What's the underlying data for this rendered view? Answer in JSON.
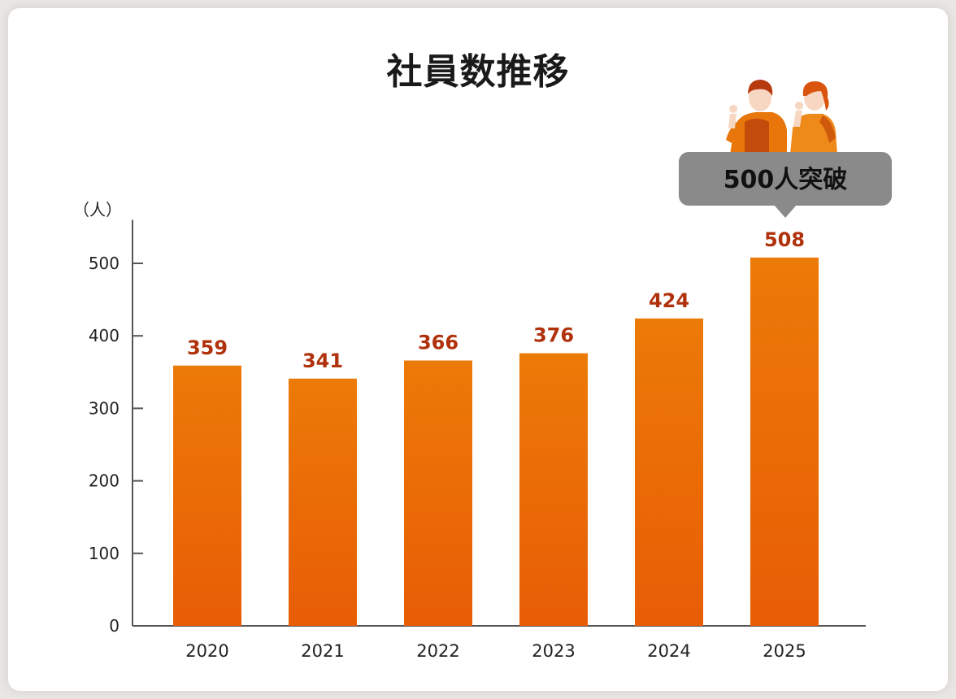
{
  "chart_data": {
    "type": "bar",
    "title": "社員数推移",
    "ylabel": "（人）",
    "xlabel": "",
    "categories": [
      "2020",
      "2021",
      "2022",
      "2023",
      "2024",
      "2025"
    ],
    "values": [
      359,
      341,
      366,
      376,
      424,
      508
    ],
    "ylim": [
      0,
      560
    ],
    "yticks": [
      0,
      100,
      200,
      300,
      400,
      500
    ],
    "grid": false,
    "legend": "none",
    "annotations": [
      {
        "text": "500人突破",
        "category": "2025"
      }
    ],
    "colors": {
      "bar_top": "#ec7a08",
      "bar_bottom": "#e85d05",
      "data_label": "#b0320c",
      "callout_bg": "#8a8a8a"
    }
  },
  "icons": {
    "illustration": "two-people-icon"
  }
}
